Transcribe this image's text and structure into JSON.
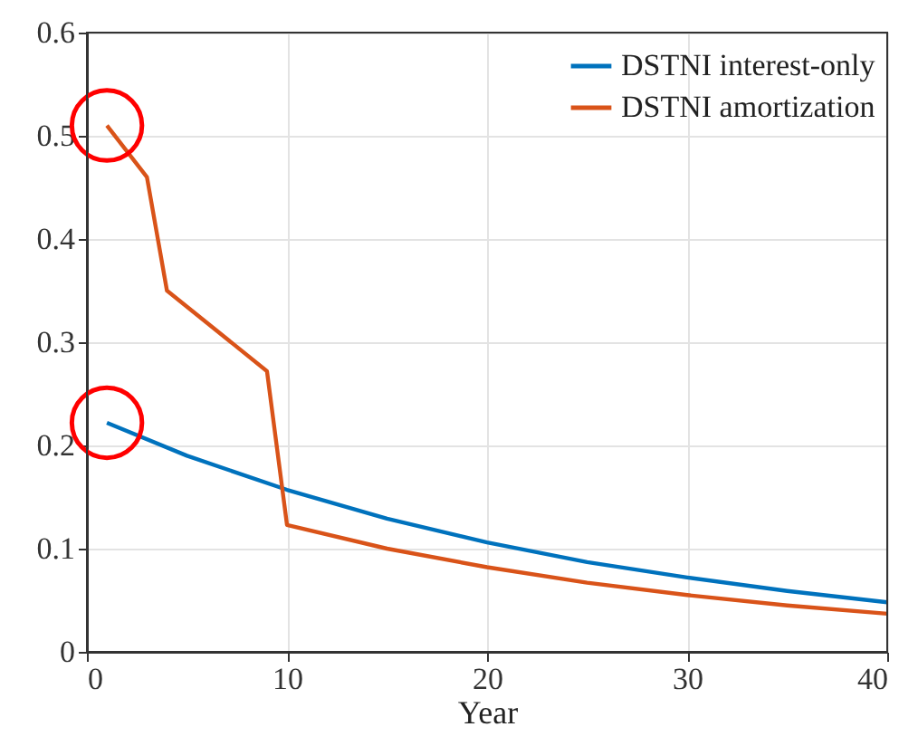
{
  "chart_data": {
    "type": "line",
    "xlabel": "Year",
    "xlim": [
      0,
      40
    ],
    "xticks": [
      0,
      10,
      20,
      30,
      40
    ],
    "ylim": [
      0,
      0.6
    ],
    "yticks": [
      0,
      0.1,
      0.2,
      0.3,
      0.4,
      0.5,
      0.6
    ],
    "grid": true,
    "legend": "top right",
    "line_style": "solid",
    "marker": "none",
    "series": [
      {
        "name": "DSTNI interest-only",
        "color": "#0072bd",
        "x": [
          1,
          5,
          10,
          15,
          20,
          25,
          30,
          35,
          40
        ],
        "values": [
          0.222,
          0.19,
          0.157,
          0.129,
          0.106,
          0.087,
          0.072,
          0.059,
          0.048
        ]
      },
      {
        "name": "DSTNI amortization",
        "color": "#d95319",
        "x": [
          1,
          3,
          4,
          9,
          10,
          15,
          20,
          25,
          30,
          35,
          40
        ],
        "values": [
          0.51,
          0.46,
          0.35,
          0.272,
          0.123,
          0.1,
          0.082,
          0.067,
          0.055,
          0.045,
          0.037
        ]
      }
    ]
  }
}
